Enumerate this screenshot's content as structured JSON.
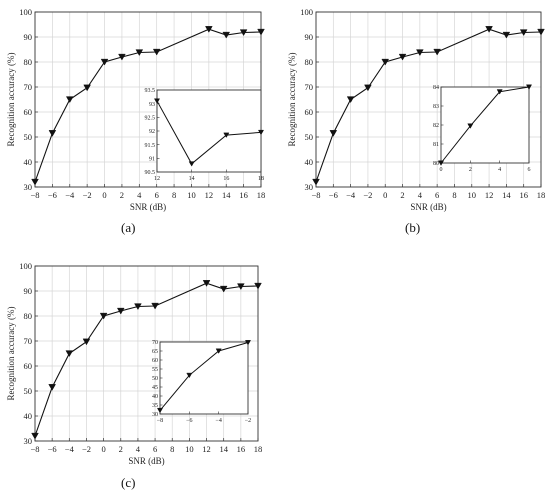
{
  "chart_data": [
    {
      "type": "line",
      "panel_label": "(a)",
      "xlabel": "SNR (dB)",
      "ylabel": "Recognition  accuracy  (%)",
      "xlim": [
        -8,
        18
      ],
      "ylim": [
        30,
        100
      ],
      "x_ticks": [
        -8,
        -6,
        -4,
        -2,
        0,
        2,
        4,
        6,
        8,
        10,
        12,
        14,
        16,
        18
      ],
      "x_tick_labels": [
        "−8",
        "−6",
        "−4",
        "−2",
        "0",
        "2",
        "4",
        "6",
        "8",
        "10",
        "12",
        "14",
        "16",
        "18"
      ],
      "y_ticks": [
        30,
        40,
        50,
        60,
        70,
        80,
        90,
        100
      ],
      "y_tick_labels": [
        "30",
        "40",
        "50",
        "60",
        "70",
        "80",
        "90",
        "100"
      ],
      "grid": true,
      "marker": "down-triangle",
      "series": [
        {
          "x": [
            -8,
            -6,
            -4,
            -2,
            0,
            2,
            4,
            6,
            12,
            14,
            16,
            18
          ],
          "values": [
            32,
            51.5,
            65,
            69.7,
            80,
            82,
            83.8,
            84,
            93.1,
            90.8,
            91.8,
            92
          ]
        }
      ],
      "inset": {
        "xlim": [
          12,
          18
        ],
        "ylim": [
          90.5,
          93.5
        ],
        "x_ticks": [
          12,
          14,
          16,
          18
        ],
        "x_tick_labels": [
          "12",
          "14",
          "16",
          "18"
        ],
        "y_ticks": [
          90.5,
          91,
          91.5,
          92,
          92.5,
          93,
          93.5
        ],
        "y_tick_labels": [
          "90.5",
          "91",
          "91.5",
          "92",
          "92.5",
          "93",
          "93.5"
        ],
        "series": [
          {
            "x": [
              12,
              14,
              16,
              18
            ],
            "values": [
              93.1,
              90.8,
              91.85,
              91.95
            ]
          }
        ]
      }
    },
    {
      "type": "line",
      "panel_label": "(b)",
      "xlabel": "SNR (dB)",
      "ylabel": "Recognition  accuracy  (%)",
      "xlim": [
        -8,
        18
      ],
      "ylim": [
        30,
        100
      ],
      "x_ticks": [
        -8,
        -6,
        -4,
        -2,
        0,
        2,
        4,
        6,
        8,
        10,
        12,
        14,
        16,
        18
      ],
      "x_tick_labels": [
        "−8",
        "−6",
        "−4",
        "−2",
        "0",
        "2",
        "4",
        "6",
        "8",
        "10",
        "12",
        "14",
        "16",
        "18"
      ],
      "y_ticks": [
        30,
        40,
        50,
        60,
        70,
        80,
        90,
        100
      ],
      "y_tick_labels": [
        "30",
        "40",
        "50",
        "60",
        "70",
        "80",
        "90",
        "100"
      ],
      "grid": true,
      "marker": "down-triangle",
      "series": [
        {
          "x": [
            -8,
            -6,
            -4,
            -2,
            0,
            2,
            4,
            6,
            12,
            14,
            16,
            18
          ],
          "values": [
            32,
            51.5,
            65,
            69.7,
            80,
            82,
            83.8,
            84,
            93.1,
            90.8,
            91.8,
            92
          ]
        }
      ],
      "inset": {
        "xlim": [
          0,
          6
        ],
        "ylim": [
          80,
          84
        ],
        "x_ticks": [
          0,
          2,
          4,
          6
        ],
        "x_tick_labels": [
          "0",
          "2",
          "4",
          "6"
        ],
        "y_ticks": [
          80,
          81,
          82,
          83,
          84
        ],
        "y_tick_labels": [
          "80",
          "81",
          "82",
          "83",
          "84"
        ],
        "series": [
          {
            "x": [
              0,
              2,
              4,
              6
            ],
            "values": [
              80,
              81.95,
              83.75,
              84
            ]
          }
        ]
      }
    },
    {
      "type": "line",
      "panel_label": "(c)",
      "xlabel": "SNR (dB)",
      "ylabel": "Recognition  accuracy  (%)",
      "xlim": [
        -8,
        18
      ],
      "ylim": [
        30,
        100
      ],
      "x_ticks": [
        -8,
        -6,
        -4,
        -2,
        0,
        2,
        4,
        6,
        8,
        10,
        12,
        14,
        16,
        18
      ],
      "x_tick_labels": [
        "−8",
        "−6",
        "−4",
        "−2",
        "0",
        "2",
        "4",
        "6",
        "8",
        "10",
        "12",
        "14",
        "16",
        "18"
      ],
      "y_ticks": [
        30,
        40,
        50,
        60,
        70,
        80,
        90,
        100
      ],
      "y_tick_labels": [
        "30",
        "40",
        "50",
        "60",
        "70",
        "80",
        "90",
        "100"
      ],
      "grid": true,
      "marker": "down-triangle",
      "series": [
        {
          "x": [
            -8,
            -6,
            -4,
            -2,
            0,
            2,
            4,
            6,
            12,
            14,
            16,
            18
          ],
          "values": [
            32,
            51.5,
            65,
            69.7,
            80,
            82,
            83.8,
            84,
            93.1,
            90.8,
            91.8,
            92
          ]
        }
      ],
      "inset": {
        "xlim": [
          -8,
          -2
        ],
        "ylim": [
          30,
          70
        ],
        "x_ticks": [
          -8,
          -6,
          -4,
          -2
        ],
        "x_tick_labels": [
          "−8",
          "−6",
          "−4",
          "−2"
        ],
        "y_ticks": [
          30,
          35,
          40,
          45,
          50,
          55,
          60,
          65,
          70
        ],
        "y_tick_labels": [
          "30",
          "35",
          "40",
          "45",
          "50",
          "55",
          "60",
          "65",
          "70"
        ],
        "series": [
          {
            "x": [
              -8,
              -6,
              -4,
              -2
            ],
            "values": [
              32,
              51.5,
              65,
              69.7
            ]
          }
        ]
      }
    }
  ]
}
